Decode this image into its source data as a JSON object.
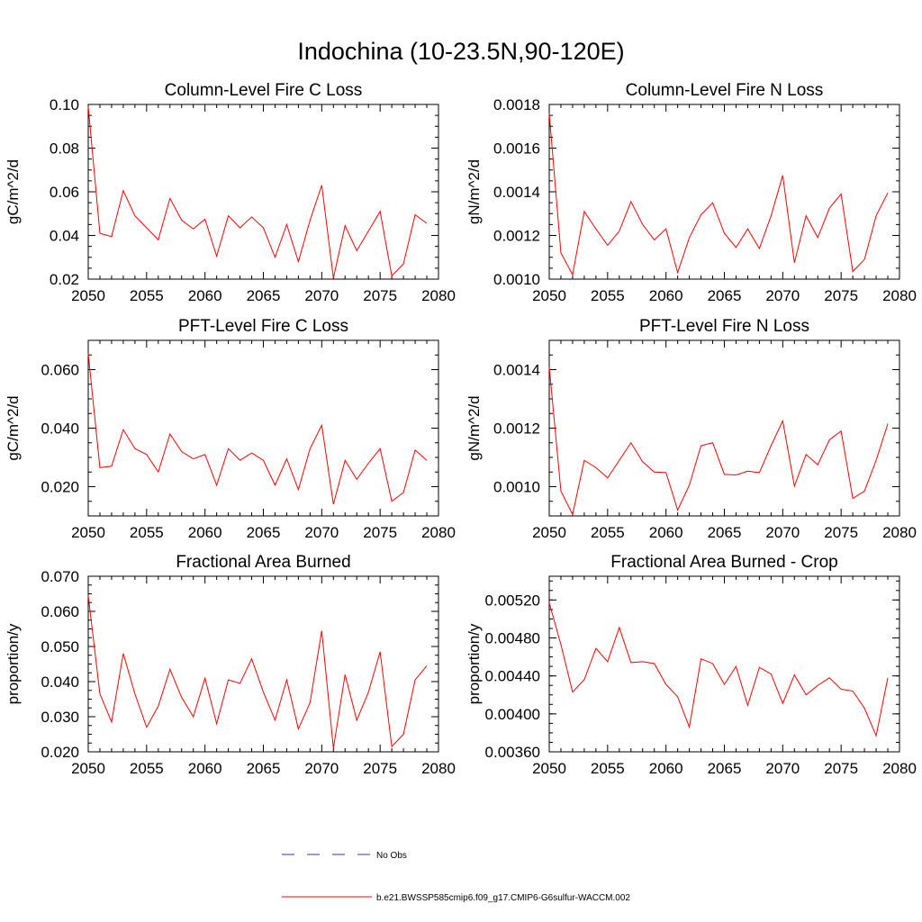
{
  "title": "Indochina (10-23.5N,90-120E)",
  "legend": [
    {
      "label": "No Obs",
      "color": "#3333aa",
      "dash": "dashed"
    },
    {
      "label": "b.e21.BWSSP585cmip6.f09_g17.CMIP6-G6sulfur-WACCM.002",
      "color": "#ff0000",
      "dash": "solid"
    }
  ],
  "chart_data": [
    {
      "type": "line",
      "title": "Column-Level Fire C Loss",
      "ylabel": "gC/m^2/d",
      "xlim": [
        2050,
        2080
      ],
      "ylim": [
        0.02,
        0.1
      ],
      "xticks": [
        2050,
        2055,
        2060,
        2065,
        2070,
        2075,
        2080
      ],
      "xtick_labels": [
        "2050",
        "2055",
        "2060",
        "2065",
        "2070",
        "2075",
        "2080"
      ],
      "yticks": [
        0.02,
        0.04,
        0.06,
        0.08,
        0.1
      ],
      "ytick_labels": [
        "0.02",
        "0.04",
        "0.06",
        "0.08",
        "0.10"
      ],
      "x": [
        2050,
        2051,
        2052,
        2053,
        2054,
        2055,
        2056,
        2057,
        2058,
        2059,
        2060,
        2061,
        2062,
        2063,
        2064,
        2065,
        2066,
        2067,
        2068,
        2069,
        2070,
        2071,
        2072,
        2073,
        2074,
        2075,
        2076,
        2077,
        2078,
        2079
      ],
      "series": [
        {
          "color": "#ff0000",
          "values": [
            0.099,
            0.041,
            0.0395,
            0.0605,
            0.049,
            0.0435,
            0.038,
            0.057,
            0.047,
            0.043,
            0.0475,
            0.0305,
            0.049,
            0.0435,
            0.0485,
            0.0435,
            0.03,
            0.045,
            0.028,
            0.047,
            0.063,
            0.0205,
            0.0445,
            0.033,
            0.042,
            0.051,
            0.0215,
            0.027,
            0.0495,
            0.0455
          ]
        }
      ]
    },
    {
      "type": "line",
      "title": "Column-Level Fire N Loss",
      "ylabel": "gN/m^2/d",
      "xlim": [
        2050,
        2080
      ],
      "ylim": [
        0.001,
        0.0018
      ],
      "xticks": [
        2050,
        2055,
        2060,
        2065,
        2070,
        2075,
        2080
      ],
      "xtick_labels": [
        "2050",
        "2055",
        "2060",
        "2065",
        "2070",
        "2075",
        "2080"
      ],
      "yticks": [
        0.001,
        0.0012,
        0.0014,
        0.0016,
        0.0018
      ],
      "ytick_labels": [
        "0.0010",
        "0.0012",
        "0.0014",
        "0.0016",
        "0.0018"
      ],
      "x": [
        2050,
        2051,
        2052,
        2053,
        2054,
        2055,
        2056,
        2057,
        2058,
        2059,
        2060,
        2061,
        2062,
        2063,
        2064,
        2065,
        2066,
        2067,
        2068,
        2069,
        2070,
        2071,
        2072,
        2073,
        2074,
        2075,
        2076,
        2077,
        2078,
        2079
      ],
      "series": [
        {
          "color": "#ff0000",
          "values": [
            0.00176,
            0.00112,
            0.00102,
            0.00131,
            0.00123,
            0.001155,
            0.00122,
            0.001355,
            0.00125,
            0.00118,
            0.00123,
            0.00103,
            0.00119,
            0.001295,
            0.00135,
            0.00121,
            0.001145,
            0.00123,
            0.00114,
            0.00129,
            0.001475,
            0.001075,
            0.00129,
            0.00119,
            0.001325,
            0.00139,
            0.001035,
            0.00109,
            0.00129,
            0.001395
          ]
        }
      ]
    },
    {
      "type": "line",
      "title": "PFT-Level Fire C Loss",
      "ylabel": "gC/m^2/d",
      "xlim": [
        2050,
        2080
      ],
      "ylim": [
        0.01,
        0.07
      ],
      "xticks": [
        2050,
        2055,
        2060,
        2065,
        2070,
        2075,
        2080
      ],
      "xtick_labels": [
        "2050",
        "2055",
        "2060",
        "2065",
        "2070",
        "2075",
        "2080"
      ],
      "yticks": [
        0.02,
        0.04,
        0.06
      ],
      "ytick_labels": [
        "0.020",
        "0.040",
        "0.060"
      ],
      "x": [
        2050,
        2051,
        2052,
        2053,
        2054,
        2055,
        2056,
        2057,
        2058,
        2059,
        2060,
        2061,
        2062,
        2063,
        2064,
        2065,
        2066,
        2067,
        2068,
        2069,
        2070,
        2071,
        2072,
        2073,
        2074,
        2075,
        2076,
        2077,
        2078,
        2079
      ],
      "series": [
        {
          "color": "#ff0000",
          "values": [
            0.0655,
            0.0265,
            0.027,
            0.0395,
            0.033,
            0.031,
            0.025,
            0.038,
            0.032,
            0.0295,
            0.031,
            0.0205,
            0.033,
            0.029,
            0.0315,
            0.029,
            0.0205,
            0.0295,
            0.019,
            0.033,
            0.041,
            0.014,
            0.029,
            0.0225,
            0.028,
            0.033,
            0.015,
            0.018,
            0.0325,
            0.029
          ]
        }
      ]
    },
    {
      "type": "line",
      "title": "PFT-Level Fire N Loss",
      "ylabel": "gN/m^2/d",
      "xlim": [
        2050,
        2080
      ],
      "ylim": [
        0.0009,
        0.0015
      ],
      "xticks": [
        2050,
        2055,
        2060,
        2065,
        2070,
        2075,
        2080
      ],
      "xtick_labels": [
        "2050",
        "2055",
        "2060",
        "2065",
        "2070",
        "2075",
        "2080"
      ],
      "yticks": [
        0.001,
        0.0012,
        0.0014
      ],
      "ytick_labels": [
        "0.0010",
        "0.0012",
        "0.0014"
      ],
      "x": [
        2050,
        2051,
        2052,
        2053,
        2054,
        2055,
        2056,
        2057,
        2058,
        2059,
        2060,
        2061,
        2062,
        2063,
        2064,
        2065,
        2066,
        2067,
        2068,
        2069,
        2070,
        2071,
        2072,
        2073,
        2074,
        2075,
        2076,
        2077,
        2078,
        2079
      ],
      "series": [
        {
          "color": "#ff0000",
          "values": [
            0.00141,
            0.000985,
            0.000905,
            0.00109,
            0.001065,
            0.00103,
            0.00109,
            0.00115,
            0.001085,
            0.00105,
            0.001048,
            0.00092,
            0.001005,
            0.00114,
            0.00115,
            0.001042,
            0.00104,
            0.001053,
            0.001048,
            0.00114,
            0.001225,
            0.001002,
            0.00111,
            0.001075,
            0.00116,
            0.00119,
            0.00096,
            0.000985,
            0.00109,
            0.001215
          ]
        }
      ]
    },
    {
      "type": "line",
      "title": "Fractional Area Burned",
      "ylabel": "proportion/y",
      "xlim": [
        2050,
        2080
      ],
      "ylim": [
        0.02,
        0.07
      ],
      "xticks": [
        2050,
        2055,
        2060,
        2065,
        2070,
        2075,
        2080
      ],
      "xtick_labels": [
        "2050",
        "2055",
        "2060",
        "2065",
        "2070",
        "2075",
        "2080"
      ],
      "yticks": [
        0.02,
        0.03,
        0.04,
        0.05,
        0.06,
        0.07
      ],
      "ytick_labels": [
        "0.020",
        "0.030",
        "0.040",
        "0.050",
        "0.060",
        "0.070"
      ],
      "x": [
        2050,
        2051,
        2052,
        2053,
        2054,
        2055,
        2056,
        2057,
        2058,
        2059,
        2060,
        2061,
        2062,
        2063,
        2064,
        2065,
        2066,
        2067,
        2068,
        2069,
        2070,
        2071,
        2072,
        2073,
        2074,
        2075,
        2076,
        2077,
        2078,
        2079
      ],
      "series": [
        {
          "color": "#ff0000",
          "values": [
            0.0645,
            0.0365,
            0.0285,
            0.048,
            0.0365,
            0.027,
            0.033,
            0.0435,
            0.0355,
            0.03,
            0.041,
            0.028,
            0.0405,
            0.0395,
            0.0465,
            0.037,
            0.029,
            0.0405,
            0.0265,
            0.034,
            0.0545,
            0.021,
            0.042,
            0.029,
            0.037,
            0.0485,
            0.0215,
            0.025,
            0.0405,
            0.0445
          ]
        }
      ]
    },
    {
      "type": "line",
      "title": "Fractional Area Burned - Crop",
      "ylabel": "proportion/y",
      "xlim": [
        2050,
        2080
      ],
      "ylim": [
        0.0036,
        0.00545
      ],
      "xticks": [
        2050,
        2055,
        2060,
        2065,
        2070,
        2075,
        2080
      ],
      "xtick_labels": [
        "2050",
        "2055",
        "2060",
        "2065",
        "2070",
        "2075",
        "2080"
      ],
      "yticks": [
        0.0036,
        0.004,
        0.0044,
        0.0048,
        0.0052
      ],
      "ytick_labels": [
        "0.00360",
        "0.00400",
        "0.00440",
        "0.00480",
        "0.00520"
      ],
      "x": [
        2050,
        2051,
        2052,
        2053,
        2054,
        2055,
        2056,
        2057,
        2058,
        2059,
        2060,
        2061,
        2062,
        2063,
        2064,
        2065,
        2066,
        2067,
        2068,
        2069,
        2070,
        2071,
        2072,
        2073,
        2074,
        2075,
        2076,
        2077,
        2078,
        2079
      ],
      "series": [
        {
          "color": "#ff0000",
          "values": [
            0.00517,
            0.00473,
            0.00423,
            0.00436,
            0.00469,
            0.00455,
            0.00491,
            0.00454,
            0.00455,
            0.00453,
            0.00431,
            0.00418,
            0.00386,
            0.00458,
            0.00453,
            0.00431,
            0.0045,
            0.00409,
            0.00449,
            0.00442,
            0.00411,
            0.00441,
            0.0042,
            0.0043,
            0.00438,
            0.00426,
            0.00424,
            0.00406,
            0.00377,
            0.00438
          ]
        }
      ]
    }
  ]
}
